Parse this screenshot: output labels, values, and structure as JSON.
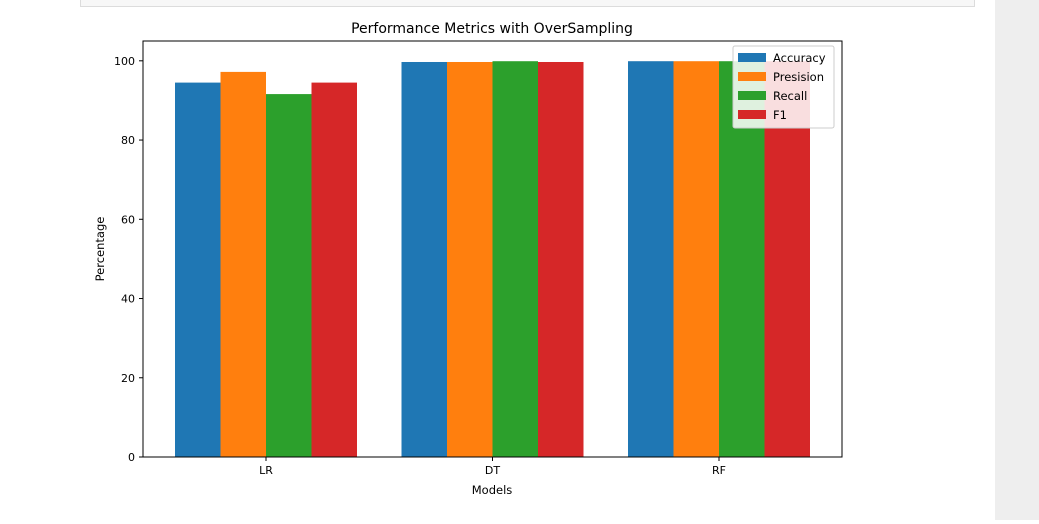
{
  "chart_data": {
    "type": "bar",
    "title": "Performance Metrics with OverSampling",
    "xlabel": "Models",
    "ylabel": "Percentage",
    "categories": [
      "LR",
      "DT",
      "RF"
    ],
    "series": [
      {
        "name": "Accuracy",
        "color": "#1f77b4",
        "values": [
          94.5,
          99.7,
          99.9
        ]
      },
      {
        "name": "Presision",
        "color": "#ff7f0e",
        "values": [
          97.2,
          99.7,
          99.9
        ]
      },
      {
        "name": "Recall",
        "color": "#2ca02c",
        "values": [
          91.6,
          99.9,
          99.9
        ]
      },
      {
        "name": "F1",
        "color": "#d62728",
        "values": [
          94.5,
          99.7,
          99.9
        ]
      }
    ],
    "ylim": [
      0,
      105
    ],
    "yticks": [
      "0",
      "20",
      "40",
      "60",
      "80",
      "100"
    ],
    "ytick_values": [
      0,
      20,
      40,
      60,
      80,
      100
    ],
    "legend_position": "top-right",
    "grid": false
  }
}
